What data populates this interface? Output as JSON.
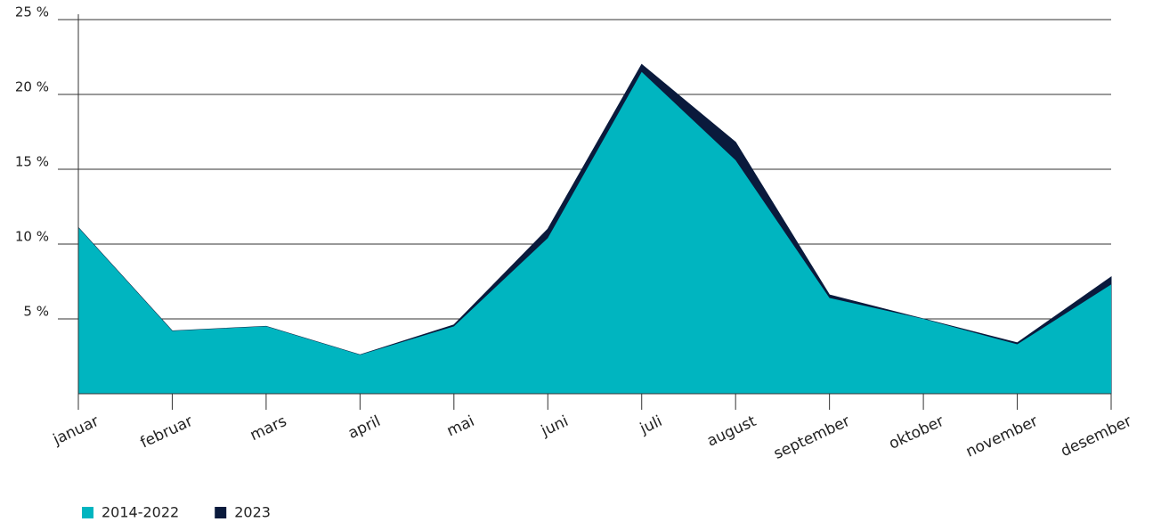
{
  "chart_data": {
    "type": "area",
    "categories": [
      "januar",
      "februar",
      "mars",
      "april",
      "mai",
      "juni",
      "juli",
      "august",
      "september",
      "oktober",
      "november",
      "desember"
    ],
    "series": [
      {
        "name": "2023",
        "color": "#0a1a3c",
        "values": [
          11.1,
          4.2,
          4.5,
          2.6,
          4.6,
          11.0,
          22.0,
          16.8,
          6.6,
          5.0,
          3.4,
          7.8
        ]
      },
      {
        "name": "2014-2022",
        "color": "#00b5c0",
        "values": [
          11.1,
          4.2,
          4.5,
          2.6,
          4.5,
          10.4,
          21.5,
          15.6,
          6.4,
          5.0,
          3.3,
          7.3
        ]
      }
    ],
    "legend_order": [
      1,
      0
    ],
    "ylim": [
      0,
      25
    ],
    "yticks": [
      {
        "value": 5,
        "label": "5 %"
      },
      {
        "value": 10,
        "label": "10 %"
      },
      {
        "value": 15,
        "label": "15 %"
      },
      {
        "value": 20,
        "label": "20 %"
      },
      {
        "value": 25,
        "label": "25 %"
      }
    ],
    "grid": true,
    "legend": "bottom-left"
  }
}
